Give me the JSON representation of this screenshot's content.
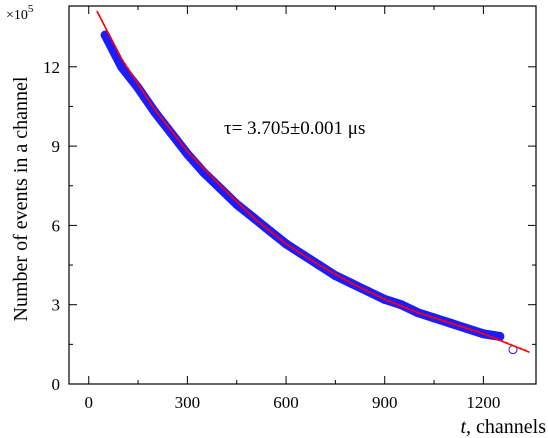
{
  "chart_data": {
    "type": "scatter",
    "xlabel_italic": "t",
    "xlabel_rest": ", channels",
    "ylabel": "Number of events in a channel",
    "y_multiplier": "×10",
    "y_multiplier_exp": "5",
    "annotation": "τ= 3.705±0.001 μs",
    "xlim": [
      -60,
      1360
    ],
    "ylim": [
      0,
      14.3
    ],
    "x_ticks": [
      0,
      300,
      600,
      900,
      1200
    ],
    "y_ticks": [
      0,
      3,
      6,
      9,
      12
    ],
    "x_minor_ticks": [
      150,
      450,
      750,
      1050
    ],
    "y_minor_ticks": [
      1.5,
      4.5,
      7.5,
      10.5
    ],
    "colors": {
      "data": "#1c1cff",
      "fit": "#ff0000",
      "axis": "#000000"
    },
    "series": [
      {
        "kind": "data",
        "points": [
          {
            "x": 50,
            "y": 13.2
          },
          {
            "x": 100,
            "y": 12.0
          },
          {
            "x": 150,
            "y": 11.2
          },
          {
            "x": 200,
            "y": 10.3
          },
          {
            "x": 250,
            "y": 9.5
          },
          {
            "x": 300,
            "y": 8.7
          },
          {
            "x": 350,
            "y": 8.0
          },
          {
            "x": 400,
            "y": 7.4
          },
          {
            "x": 450,
            "y": 6.8
          },
          {
            "x": 500,
            "y": 6.3
          },
          {
            "x": 550,
            "y": 5.8
          },
          {
            "x": 600,
            "y": 5.3
          },
          {
            "x": 650,
            "y": 4.9
          },
          {
            "x": 700,
            "y": 4.5
          },
          {
            "x": 750,
            "y": 4.1
          },
          {
            "x": 800,
            "y": 3.8
          },
          {
            "x": 850,
            "y": 3.5
          },
          {
            "x": 900,
            "y": 3.2
          },
          {
            "x": 950,
            "y": 3.0
          },
          {
            "x": 1000,
            "y": 2.7
          },
          {
            "x": 1050,
            "y": 2.5
          },
          {
            "x": 1100,
            "y": 2.3
          },
          {
            "x": 1150,
            "y": 2.1
          },
          {
            "x": 1200,
            "y": 1.9
          },
          {
            "x": 1250,
            "y": 1.8
          },
          {
            "x": 1290,
            "y": 1.3
          }
        ]
      },
      {
        "kind": "fit",
        "points": [
          {
            "x": 25,
            "y": 14.1
          },
          {
            "x": 100,
            "y": 12.3
          },
          {
            "x": 200,
            "y": 10.4
          },
          {
            "x": 300,
            "y": 8.8
          },
          {
            "x": 400,
            "y": 7.5
          },
          {
            "x": 500,
            "y": 6.3
          },
          {
            "x": 600,
            "y": 5.3
          },
          {
            "x": 700,
            "y": 4.5
          },
          {
            "x": 800,
            "y": 3.8
          },
          {
            "x": 900,
            "y": 3.2
          },
          {
            "x": 1000,
            "y": 2.7
          },
          {
            "x": 1100,
            "y": 2.3
          },
          {
            "x": 1200,
            "y": 1.9
          },
          {
            "x": 1340,
            "y": 1.2
          }
        ]
      }
    ]
  }
}
